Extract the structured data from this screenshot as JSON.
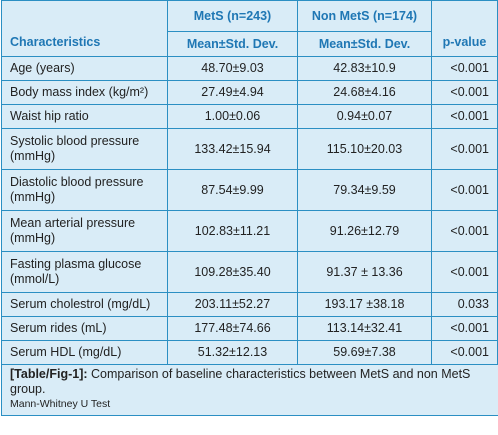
{
  "header": {
    "group1": "MetS (n=243)",
    "group2": "Non MetS (n=174)",
    "characteristics": "Characteristics",
    "stat1": "Mean±Std. Dev.",
    "stat2": "Mean±Std. Dev.",
    "pvalue": "p-value"
  },
  "rows": [
    {
      "label": "Age (years)",
      "mets": "48.70±9.03",
      "nonmets": "42.83±10.9",
      "p": "<0.001"
    },
    {
      "label": "Body mass index (kg/m²)",
      "mets": "27.49±4.94",
      "nonmets": "24.68±4.16",
      "p": "<0.001"
    },
    {
      "label": "Waist hip ratio",
      "mets": "1.00±0.06",
      "nonmets": "0.94±0.07",
      "p": "<0.001"
    },
    {
      "label": "Systolic blood pressure (mmHg)",
      "mets": "133.42±15.94",
      "nonmets": "115.10±20.03",
      "p": "<0.001"
    },
    {
      "label": "Diastolic blood pressure (mmHg)",
      "mets": "87.54±9.99",
      "nonmets": "79.34±9.59",
      "p": "<0.001"
    },
    {
      "label": "Mean arterial pressure (mmHg)",
      "mets": "102.83±11.21",
      "nonmets": "91.26±12.79",
      "p": "<0.001"
    },
    {
      "label": "Fasting plasma glucose (mmol/L)",
      "mets": "109.28±35.40",
      "nonmets": "91.37 ± 13.36",
      "p": "<0.001"
    },
    {
      "label": "Serum cholestrol (mg/dL)",
      "mets": "203.11±52.27",
      "nonmets": "193.17 ±38.18",
      "p": "0.033"
    },
    {
      "label": "Serum rides (mL)",
      "mets": "177.48±74.66",
      "nonmets": "113.14±32.41",
      "p": "<0.001"
    },
    {
      "label": "Serum HDL (mg/dL)",
      "mets": "51.32±12.13",
      "nonmets": "59.69±7.38",
      "p": "<0.001"
    }
  ],
  "caption": {
    "tag": "[Table/Fig-1]:",
    "text": "Comparison of baseline characteristics between MetS and non MetS group."
  },
  "note": "Mann-Whitney U Test"
}
